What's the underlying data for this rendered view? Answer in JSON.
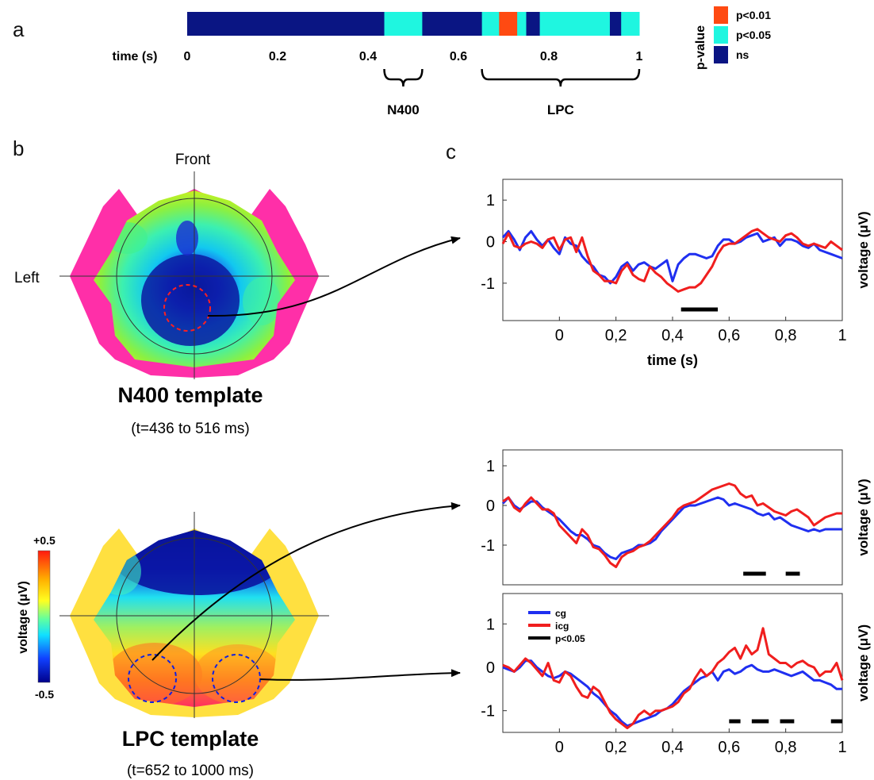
{
  "panel_labels": {
    "a": "a",
    "b": "b",
    "c": "c"
  },
  "colors": {
    "ns": "#0a1583",
    "p05": "#1ff6e0",
    "p01": "#ff4a12",
    "cg": "#1f2ff0",
    "icg": "#f01e1e",
    "sig": "#000000",
    "rim": "#ff2fa8"
  },
  "timeline": {
    "axis_label": "time (s)",
    "tick_labels": [
      "0",
      "0.2",
      "0.4",
      "0.6",
      "0.8",
      "1"
    ],
    "ticks": [
      0,
      0.2,
      0.4,
      0.6,
      0.8,
      1
    ],
    "segments": [
      {
        "start": 0.0,
        "end": 0.436,
        "class": "ns"
      },
      {
        "start": 0.436,
        "end": 0.52,
        "class": "p05"
      },
      {
        "start": 0.52,
        "end": 0.652,
        "class": "ns"
      },
      {
        "start": 0.652,
        "end": 0.69,
        "class": "p05"
      },
      {
        "start": 0.69,
        "end": 0.73,
        "class": "p01"
      },
      {
        "start": 0.73,
        "end": 0.75,
        "class": "p05"
      },
      {
        "start": 0.75,
        "end": 0.78,
        "class": "ns"
      },
      {
        "start": 0.78,
        "end": 0.935,
        "class": "p05"
      },
      {
        "start": 0.935,
        "end": 0.96,
        "class": "ns"
      },
      {
        "start": 0.96,
        "end": 1.0,
        "class": "p05"
      }
    ],
    "windows": [
      {
        "label": "N400",
        "start": 0.436,
        "end": 0.52
      },
      {
        "label": "LPC",
        "start": 0.652,
        "end": 1.0
      }
    ],
    "legend": {
      "title": "p-value",
      "items": [
        {
          "label": "p<0.01",
          "class": "p01"
        },
        {
          "label": "p<0.05",
          "class": "p05"
        },
        {
          "label": "ns",
          "class": "ns"
        }
      ]
    }
  },
  "topomaps": {
    "front_label": "Front",
    "left_label": "Left",
    "n400": {
      "title": "N400 template",
      "subtitle": "(t=436 to 516 ms)"
    },
    "lpc": {
      "title": "LPC template",
      "subtitle": "(t=652 to 1000 ms)"
    },
    "colorbar": {
      "label": "voltage (μV)",
      "max_label": "+0.5",
      "min_label": "-0.5"
    }
  },
  "chart_data": [
    {
      "type": "line",
      "title": "",
      "xlabel": "time (s)",
      "ylabel": "voltage (μV)",
      "xlim": [
        -0.2,
        1.0
      ],
      "ylim": [
        -1.9,
        1.5
      ],
      "x_ticks": [
        0,
        0.2,
        0.4,
        0.6,
        0.8,
        1
      ],
      "x_tick_labels": [
        "0",
        "0,2",
        "0,4",
        "0,6",
        "0,8",
        "1"
      ],
      "y_ticks": [
        -1,
        0,
        1
      ],
      "y_tick_labels": [
        "-1",
        "0",
        "1"
      ],
      "series": [
        {
          "class": "cg",
          "x": [
            -0.2,
            -0.18,
            -0.16,
            -0.14,
            -0.12,
            -0.1,
            -0.08,
            -0.06,
            -0.04,
            -0.02,
            0,
            0.02,
            0.04,
            0.06,
            0.08,
            0.1,
            0.12,
            0.14,
            0.16,
            0.18,
            0.2,
            0.22,
            0.24,
            0.26,
            0.28,
            0.3,
            0.32,
            0.34,
            0.36,
            0.38,
            0.4,
            0.42,
            0.44,
            0.46,
            0.48,
            0.5,
            0.52,
            0.54,
            0.56,
            0.58,
            0.6,
            0.62,
            0.64,
            0.66,
            0.68,
            0.7,
            0.72,
            0.74,
            0.76,
            0.78,
            0.8,
            0.82,
            0.84,
            0.86,
            0.88,
            0.9,
            0.92,
            0.94,
            0.96,
            0.98,
            1
          ],
          "y": [
            0.1,
            0.25,
            0.05,
            -0.2,
            0.1,
            0.25,
            0.05,
            -0.1,
            0.05,
            -0.15,
            -0.3,
            0.1,
            -0.05,
            -0.1,
            -0.35,
            -0.5,
            -0.6,
            -0.8,
            -0.85,
            -1.0,
            -0.85,
            -0.6,
            -0.5,
            -0.7,
            -0.55,
            -0.5,
            -0.6,
            -0.65,
            -0.55,
            -0.45,
            -0.95,
            -0.55,
            -0.4,
            -0.3,
            -0.3,
            -0.35,
            -0.4,
            -0.35,
            -0.1,
            0.05,
            0.05,
            -0.05,
            0.0,
            0.1,
            0.15,
            0.2,
            0.0,
            0.05,
            0.1,
            -0.1,
            0.05,
            0.05,
            0.0,
            -0.1,
            -0.15,
            -0.05,
            -0.2,
            -0.25,
            -0.3,
            -0.35,
            -0.4
          ]
        },
        {
          "class": "icg",
          "x": [
            -0.2,
            -0.18,
            -0.16,
            -0.14,
            -0.12,
            -0.1,
            -0.08,
            -0.06,
            -0.04,
            -0.02,
            0,
            0.02,
            0.04,
            0.06,
            0.08,
            0.1,
            0.12,
            0.14,
            0.16,
            0.18,
            0.2,
            0.22,
            0.24,
            0.26,
            0.28,
            0.3,
            0.32,
            0.34,
            0.36,
            0.38,
            0.4,
            0.42,
            0.44,
            0.46,
            0.48,
            0.5,
            0.52,
            0.54,
            0.56,
            0.58,
            0.6,
            0.62,
            0.64,
            0.66,
            0.68,
            0.7,
            0.72,
            0.74,
            0.76,
            0.78,
            0.8,
            0.82,
            0.84,
            0.86,
            0.88,
            0.9,
            0.92,
            0.94,
            0.96,
            0.98,
            1
          ],
          "y": [
            -0.05,
            0.2,
            -0.1,
            -0.15,
            -0.05,
            0.0,
            -0.05,
            -0.15,
            0.05,
            0.1,
            -0.2,
            0.05,
            0.1,
            -0.25,
            0.1,
            -0.35,
            -0.7,
            -0.8,
            -0.95,
            -0.95,
            -1.0,
            -0.7,
            -0.55,
            -0.8,
            -0.9,
            -0.95,
            -0.6,
            -0.75,
            -0.85,
            -1.0,
            -1.1,
            -1.2,
            -1.15,
            -1.1,
            -1.1,
            -1.0,
            -0.8,
            -0.6,
            -0.3,
            -0.1,
            -0.05,
            -0.05,
            0.05,
            0.15,
            0.25,
            0.3,
            0.2,
            0.1,
            0.05,
            0.0,
            0.15,
            0.2,
            0.1,
            -0.05,
            -0.1,
            -0.05,
            -0.1,
            -0.15,
            0.0,
            -0.1,
            -0.2
          ]
        }
      ],
      "significance_bars": [
        [
          0.43,
          0.56
        ]
      ]
    },
    {
      "type": "line",
      "title": "",
      "xlabel": "",
      "ylabel": "voltage (μV)",
      "xlim": [
        -0.2,
        1.0
      ],
      "ylim": [
        -2.0,
        1.4
      ],
      "x_ticks": [],
      "x_tick_labels": [],
      "y_ticks": [
        -1,
        0,
        1
      ],
      "y_tick_labels": [
        "-1",
        "0",
        "1"
      ],
      "series": [
        {
          "class": "cg",
          "x": [
            -0.2,
            -0.18,
            -0.16,
            -0.14,
            -0.12,
            -0.1,
            -0.08,
            -0.06,
            -0.04,
            -0.02,
            0,
            0.02,
            0.04,
            0.06,
            0.08,
            0.1,
            0.12,
            0.14,
            0.16,
            0.18,
            0.2,
            0.22,
            0.24,
            0.26,
            0.28,
            0.3,
            0.32,
            0.34,
            0.36,
            0.38,
            0.4,
            0.42,
            0.44,
            0.46,
            0.48,
            0.5,
            0.52,
            0.54,
            0.56,
            0.58,
            0.6,
            0.62,
            0.64,
            0.66,
            0.68,
            0.7,
            0.72,
            0.74,
            0.76,
            0.78,
            0.8,
            0.82,
            0.84,
            0.86,
            0.88,
            0.9,
            0.92,
            0.94,
            0.96,
            0.98,
            1
          ],
          "y": [
            0.05,
            0.2,
            0.0,
            -0.1,
            0.0,
            0.1,
            0.1,
            -0.05,
            -0.15,
            -0.25,
            -0.35,
            -0.5,
            -0.65,
            -0.75,
            -0.75,
            -0.85,
            -1.0,
            -1.05,
            -1.2,
            -1.3,
            -1.35,
            -1.2,
            -1.15,
            -1.1,
            -1.0,
            -1.0,
            -0.95,
            -0.85,
            -0.65,
            -0.5,
            -0.35,
            -0.2,
            -0.05,
            0.0,
            0.0,
            0.05,
            0.1,
            0.15,
            0.2,
            0.15,
            0.0,
            0.05,
            0.0,
            -0.05,
            -0.1,
            -0.2,
            -0.25,
            -0.2,
            -0.35,
            -0.3,
            -0.4,
            -0.5,
            -0.55,
            -0.6,
            -0.65,
            -0.6,
            -0.65,
            -0.6,
            -0.6,
            -0.6,
            -0.6
          ]
        },
        {
          "class": "icg",
          "x": [
            -0.2,
            -0.18,
            -0.16,
            -0.14,
            -0.12,
            -0.1,
            -0.08,
            -0.06,
            -0.04,
            -0.02,
            0,
            0.02,
            0.04,
            0.06,
            0.08,
            0.1,
            0.12,
            0.14,
            0.16,
            0.18,
            0.2,
            0.22,
            0.24,
            0.26,
            0.28,
            0.3,
            0.32,
            0.34,
            0.36,
            0.38,
            0.4,
            0.42,
            0.44,
            0.46,
            0.48,
            0.5,
            0.52,
            0.54,
            0.56,
            0.58,
            0.6,
            0.62,
            0.64,
            0.66,
            0.68,
            0.7,
            0.72,
            0.74,
            0.76,
            0.78,
            0.8,
            0.82,
            0.84,
            0.86,
            0.88,
            0.9,
            0.92,
            0.94,
            0.96,
            0.98,
            1
          ],
          "y": [
            0.1,
            0.2,
            -0.05,
            -0.15,
            0.05,
            0.2,
            0.05,
            -0.1,
            -0.1,
            -0.2,
            -0.5,
            -0.65,
            -0.8,
            -0.95,
            -0.6,
            -0.75,
            -1.05,
            -1.1,
            -1.25,
            -1.45,
            -1.55,
            -1.3,
            -1.2,
            -1.15,
            -1.05,
            -1.0,
            -0.9,
            -0.75,
            -0.6,
            -0.45,
            -0.3,
            -0.1,
            0.0,
            0.05,
            0.1,
            0.2,
            0.3,
            0.4,
            0.45,
            0.5,
            0.55,
            0.5,
            0.3,
            0.2,
            0.25,
            0.0,
            0.05,
            -0.05,
            -0.15,
            -0.2,
            -0.25,
            -0.15,
            -0.1,
            -0.2,
            -0.3,
            -0.5,
            -0.4,
            -0.3,
            -0.25,
            -0.2,
            -0.2
          ]
        }
      ],
      "significance_bars": [
        [
          0.65,
          0.73
        ],
        [
          0.8,
          0.85
        ]
      ]
    },
    {
      "type": "line",
      "title": "",
      "xlabel": "",
      "ylabel": "voltage (μV)",
      "xlim": [
        -0.2,
        1.0
      ],
      "ylim": [
        -1.5,
        1.7
      ],
      "x_ticks": [
        0,
        0.2,
        0.4,
        0.6,
        0.8,
        1
      ],
      "x_tick_labels": [
        "0",
        "0,2",
        "0,4",
        "0,6",
        "0,8",
        "1"
      ],
      "y_ticks": [
        -1,
        0,
        1
      ],
      "y_tick_labels": [
        "-1",
        "0",
        "1"
      ],
      "legend": {
        "position": "top-left",
        "entries": [
          "cg",
          "icg",
          "p<0.05"
        ]
      },
      "series": [
        {
          "name": "cg",
          "class": "cg",
          "x": [
            -0.2,
            -0.18,
            -0.16,
            -0.14,
            -0.12,
            -0.1,
            -0.08,
            -0.06,
            -0.04,
            -0.02,
            0,
            0.02,
            0.04,
            0.06,
            0.08,
            0.1,
            0.12,
            0.14,
            0.16,
            0.18,
            0.2,
            0.22,
            0.24,
            0.26,
            0.28,
            0.3,
            0.32,
            0.34,
            0.36,
            0.38,
            0.4,
            0.42,
            0.44,
            0.46,
            0.48,
            0.5,
            0.52,
            0.54,
            0.56,
            0.58,
            0.6,
            0.62,
            0.64,
            0.66,
            0.68,
            0.7,
            0.72,
            0.74,
            0.76,
            0.78,
            0.8,
            0.82,
            0.84,
            0.86,
            0.88,
            0.9,
            0.92,
            0.94,
            0.96,
            0.98,
            1
          ],
          "y": [
            0.0,
            -0.05,
            -0.1,
            0.0,
            0.15,
            0.15,
            0.0,
            -0.1,
            -0.2,
            -0.25,
            -0.2,
            -0.1,
            -0.15,
            -0.25,
            -0.35,
            -0.45,
            -0.6,
            -0.7,
            -0.85,
            -1.0,
            -1.1,
            -1.25,
            -1.35,
            -1.3,
            -1.25,
            -1.2,
            -1.15,
            -1.1,
            -1.0,
            -0.95,
            -0.85,
            -0.7,
            -0.55,
            -0.45,
            -0.35,
            -0.25,
            -0.2,
            -0.1,
            -0.3,
            -0.1,
            -0.05,
            -0.15,
            -0.1,
            0.0,
            0.05,
            -0.05,
            -0.1,
            -0.1,
            -0.05,
            -0.1,
            -0.15,
            -0.2,
            -0.15,
            -0.1,
            -0.2,
            -0.3,
            -0.3,
            -0.35,
            -0.4,
            -0.5,
            -0.5
          ]
        },
        {
          "name": "icg",
          "class": "icg",
          "x": [
            -0.2,
            -0.18,
            -0.16,
            -0.14,
            -0.12,
            -0.1,
            -0.08,
            -0.06,
            -0.04,
            -0.02,
            0,
            0.02,
            0.04,
            0.06,
            0.08,
            0.1,
            0.12,
            0.14,
            0.16,
            0.18,
            0.2,
            0.22,
            0.24,
            0.26,
            0.28,
            0.3,
            0.32,
            0.34,
            0.36,
            0.38,
            0.4,
            0.42,
            0.44,
            0.46,
            0.48,
            0.5,
            0.52,
            0.54,
            0.56,
            0.58,
            0.6,
            0.62,
            0.64,
            0.66,
            0.68,
            0.7,
            0.72,
            0.74,
            0.76,
            0.78,
            0.8,
            0.82,
            0.84,
            0.86,
            0.88,
            0.9,
            0.92,
            0.94,
            0.96,
            0.98,
            1
          ],
          "y": [
            0.05,
            0.0,
            -0.1,
            0.05,
            0.2,
            0.1,
            -0.05,
            -0.2,
            0.1,
            -0.3,
            -0.35,
            -0.1,
            -0.2,
            -0.45,
            -0.65,
            -0.7,
            -0.45,
            -0.55,
            -0.8,
            -1.05,
            -1.2,
            -1.3,
            -1.4,
            -1.3,
            -1.1,
            -1.0,
            -1.1,
            -1.0,
            -1.0,
            -0.95,
            -0.9,
            -0.8,
            -0.6,
            -0.5,
            -0.25,
            -0.05,
            -0.2,
            -0.1,
            0.1,
            0.2,
            0.35,
            0.45,
            0.2,
            0.5,
            0.3,
            0.4,
            0.9,
            0.3,
            0.2,
            0.1,
            0.1,
            0.0,
            0.1,
            0.15,
            0.05,
            0.0,
            -0.2,
            -0.1,
            -0.1,
            0.1,
            -0.3
          ]
        }
      ],
      "significance_bars": [
        [
          0.6,
          0.64
        ],
        [
          0.68,
          0.74
        ],
        [
          0.78,
          0.83
        ],
        [
          0.96,
          1.0
        ]
      ]
    }
  ]
}
